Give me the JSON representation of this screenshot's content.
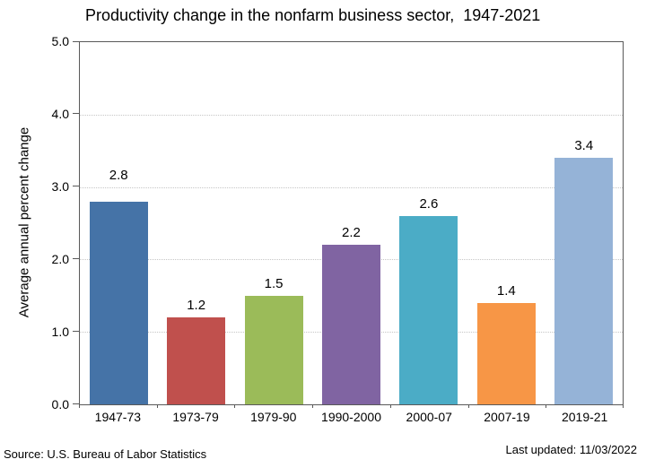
{
  "title": "Productivity change in the nonfarm business sector,  1947-2021",
  "chart_data": {
    "type": "bar",
    "title": "Productivity change in the nonfarm business sector,  1947-2021",
    "categories": [
      "1947-73",
      "1973-79",
      "1979-90",
      "1990-2000",
      "2000-07",
      "2007-19",
      "2019-21"
    ],
    "values": [
      2.8,
      1.2,
      1.5,
      2.2,
      2.6,
      1.4,
      3.4
    ],
    "labels": [
      "2.8",
      "1.2",
      "1.5",
      "2.2",
      "2.6",
      "1.4",
      "3.4"
    ],
    "xlabel": "",
    "ylabel": "Average annual percent change",
    "ylim": [
      0,
      5
    ],
    "yticks": [
      "5.0",
      "4.0",
      "3.0",
      "2.0",
      "1.0",
      "0.0"
    ],
    "grid": "horizontal dotted at 1.0 intervals",
    "legend": "none",
    "bar_colors": [
      "#4573a7",
      "#c0504d",
      "#9bbb59",
      "#8064a2",
      "#4bacc6",
      "#f79646",
      "#95b3d7"
    ]
  },
  "footer": {
    "source": "Source: U.S. Bureau of Labor Statistics",
    "last_updated": "Last updated: 11/03/2022"
  }
}
